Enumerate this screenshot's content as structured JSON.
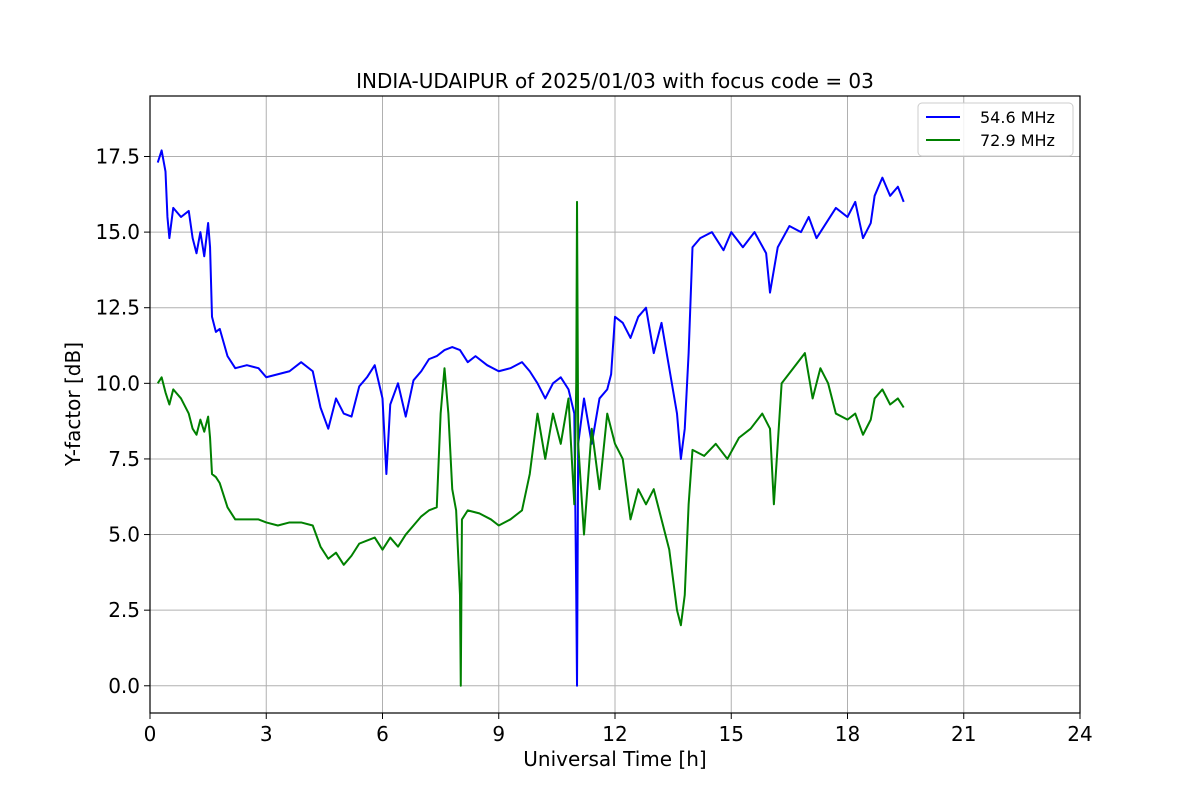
{
  "chart_data": {
    "type": "line",
    "title": "INDIA-UDAIPUR of 2025/01/03 with focus code = 03",
    "xlabel": "Universal Time [h]",
    "ylabel": "Y-factor [dB]",
    "xlim": [
      0,
      24
    ],
    "ylim": [
      -0.9,
      19.5
    ],
    "xticks": [
      0,
      3,
      6,
      9,
      12,
      15,
      18,
      21,
      24
    ],
    "xtick_labels": [
      "0",
      "3",
      "6",
      "9",
      "12",
      "15",
      "18",
      "21",
      "24"
    ],
    "yticks": [
      0.0,
      2.5,
      5.0,
      7.5,
      10.0,
      12.5,
      15.0,
      17.5
    ],
    "ytick_labels": [
      "0.0",
      "2.5",
      "5.0",
      "7.5",
      "10.0",
      "12.5",
      "15.0",
      "17.5"
    ],
    "grid": true,
    "legend_position": "top-right",
    "series": [
      {
        "name": "54.6 MHz",
        "color": "#0000ff",
        "points": [
          [
            0.2,
            17.3
          ],
          [
            0.3,
            17.7
          ],
          [
            0.4,
            17.0
          ],
          [
            0.45,
            15.5
          ],
          [
            0.5,
            14.8
          ],
          [
            0.6,
            15.8
          ],
          [
            0.8,
            15.5
          ],
          [
            1.0,
            15.7
          ],
          [
            1.1,
            14.8
          ],
          [
            1.2,
            14.3
          ],
          [
            1.3,
            15.0
          ],
          [
            1.4,
            14.2
          ],
          [
            1.5,
            15.3
          ],
          [
            1.55,
            14.5
          ],
          [
            1.6,
            12.2
          ],
          [
            1.7,
            11.7
          ],
          [
            1.8,
            11.8
          ],
          [
            2.0,
            10.9
          ],
          [
            2.2,
            10.5
          ],
          [
            2.5,
            10.6
          ],
          [
            2.8,
            10.5
          ],
          [
            3.0,
            10.2
          ],
          [
            3.3,
            10.3
          ],
          [
            3.6,
            10.4
          ],
          [
            3.9,
            10.7
          ],
          [
            4.2,
            10.4
          ],
          [
            4.4,
            9.2
          ],
          [
            4.6,
            8.5
          ],
          [
            4.8,
            9.5
          ],
          [
            5.0,
            9.0
          ],
          [
            5.2,
            8.9
          ],
          [
            5.4,
            9.9
          ],
          [
            5.6,
            10.2
          ],
          [
            5.8,
            10.6
          ],
          [
            6.0,
            9.5
          ],
          [
            6.1,
            7.0
          ],
          [
            6.2,
            9.3
          ],
          [
            6.4,
            10.0
          ],
          [
            6.6,
            8.9
          ],
          [
            6.8,
            10.1
          ],
          [
            7.0,
            10.4
          ],
          [
            7.2,
            10.8
          ],
          [
            7.4,
            10.9
          ],
          [
            7.6,
            11.1
          ],
          [
            7.8,
            11.2
          ],
          [
            8.0,
            11.1
          ],
          [
            8.2,
            10.7
          ],
          [
            8.4,
            10.9
          ],
          [
            8.7,
            10.6
          ],
          [
            9.0,
            10.4
          ],
          [
            9.3,
            10.5
          ],
          [
            9.6,
            10.7
          ],
          [
            9.8,
            10.4
          ],
          [
            10.0,
            10.0
          ],
          [
            10.2,
            9.5
          ],
          [
            10.4,
            10.0
          ],
          [
            10.6,
            10.2
          ],
          [
            10.8,
            9.8
          ],
          [
            10.95,
            9.0
          ],
          [
            11.0,
            3.0
          ],
          [
            11.02,
            0.0
          ],
          [
            11.05,
            8.0
          ],
          [
            11.2,
            9.5
          ],
          [
            11.4,
            8.0
          ],
          [
            11.6,
            9.5
          ],
          [
            11.8,
            9.8
          ],
          [
            11.9,
            10.3
          ],
          [
            12.0,
            12.2
          ],
          [
            12.2,
            12.0
          ],
          [
            12.4,
            11.5
          ],
          [
            12.6,
            12.2
          ],
          [
            12.8,
            12.5
          ],
          [
            13.0,
            11.0
          ],
          [
            13.2,
            12.0
          ],
          [
            13.4,
            10.5
          ],
          [
            13.6,
            9.0
          ],
          [
            13.7,
            7.5
          ],
          [
            13.8,
            8.5
          ],
          [
            13.9,
            11.0
          ],
          [
            14.0,
            14.5
          ],
          [
            14.2,
            14.8
          ],
          [
            14.5,
            15.0
          ],
          [
            14.8,
            14.4
          ],
          [
            15.0,
            15.0
          ],
          [
            15.3,
            14.5
          ],
          [
            15.6,
            15.0
          ],
          [
            15.9,
            14.3
          ],
          [
            16.0,
            13.0
          ],
          [
            16.2,
            14.5
          ],
          [
            16.5,
            15.2
          ],
          [
            16.8,
            15.0
          ],
          [
            17.0,
            15.5
          ],
          [
            17.2,
            14.8
          ],
          [
            17.4,
            15.2
          ],
          [
            17.7,
            15.8
          ],
          [
            18.0,
            15.5
          ],
          [
            18.2,
            16.0
          ],
          [
            18.4,
            14.8
          ],
          [
            18.6,
            15.3
          ],
          [
            18.7,
            16.2
          ],
          [
            18.9,
            16.8
          ],
          [
            19.1,
            16.2
          ],
          [
            19.3,
            16.5
          ],
          [
            19.45,
            16.0
          ]
        ]
      },
      {
        "name": "72.9 MHz",
        "color": "#008000",
        "points": [
          [
            0.2,
            10.0
          ],
          [
            0.3,
            10.2
          ],
          [
            0.4,
            9.7
          ],
          [
            0.5,
            9.3
          ],
          [
            0.6,
            9.8
          ],
          [
            0.8,
            9.5
          ],
          [
            1.0,
            9.0
          ],
          [
            1.1,
            8.5
          ],
          [
            1.2,
            8.3
          ],
          [
            1.3,
            8.8
          ],
          [
            1.4,
            8.4
          ],
          [
            1.5,
            8.9
          ],
          [
            1.55,
            8.2
          ],
          [
            1.6,
            7.0
          ],
          [
            1.7,
            6.9
          ],
          [
            1.8,
            6.7
          ],
          [
            2.0,
            5.9
          ],
          [
            2.2,
            5.5
          ],
          [
            2.5,
            5.5
          ],
          [
            2.8,
            5.5
          ],
          [
            3.0,
            5.4
          ],
          [
            3.3,
            5.3
          ],
          [
            3.6,
            5.4
          ],
          [
            3.9,
            5.4
          ],
          [
            4.2,
            5.3
          ],
          [
            4.4,
            4.6
          ],
          [
            4.6,
            4.2
          ],
          [
            4.8,
            4.4
          ],
          [
            5.0,
            4.0
          ],
          [
            5.2,
            4.3
          ],
          [
            5.4,
            4.7
          ],
          [
            5.6,
            4.8
          ],
          [
            5.8,
            4.9
          ],
          [
            6.0,
            4.5
          ],
          [
            6.2,
            4.9
          ],
          [
            6.4,
            4.6
          ],
          [
            6.6,
            5.0
          ],
          [
            6.8,
            5.3
          ],
          [
            7.0,
            5.6
          ],
          [
            7.2,
            5.8
          ],
          [
            7.4,
            5.9
          ],
          [
            7.5,
            9.0
          ],
          [
            7.6,
            10.5
          ],
          [
            7.7,
            9.0
          ],
          [
            7.8,
            6.5
          ],
          [
            7.9,
            5.8
          ],
          [
            8.0,
            3.0
          ],
          [
            8.02,
            0.0
          ],
          [
            8.05,
            5.5
          ],
          [
            8.2,
            5.8
          ],
          [
            8.5,
            5.7
          ],
          [
            8.8,
            5.5
          ],
          [
            9.0,
            5.3
          ],
          [
            9.3,
            5.5
          ],
          [
            9.6,
            5.8
          ],
          [
            9.8,
            7.0
          ],
          [
            10.0,
            9.0
          ],
          [
            10.2,
            7.5
          ],
          [
            10.4,
            9.0
          ],
          [
            10.6,
            8.0
          ],
          [
            10.8,
            9.5
          ],
          [
            10.95,
            6.0
          ],
          [
            11.0,
            10.0
          ],
          [
            11.02,
            16.0
          ],
          [
            11.05,
            8.0
          ],
          [
            11.2,
            5.0
          ],
          [
            11.4,
            8.5
          ],
          [
            11.6,
            6.5
          ],
          [
            11.8,
            9.0
          ],
          [
            12.0,
            8.0
          ],
          [
            12.2,
            7.5
          ],
          [
            12.4,
            5.5
          ],
          [
            12.6,
            6.5
          ],
          [
            12.8,
            6.0
          ],
          [
            13.0,
            6.5
          ],
          [
            13.2,
            5.5
          ],
          [
            13.4,
            4.5
          ],
          [
            13.6,
            2.5
          ],
          [
            13.7,
            2.0
          ],
          [
            13.8,
            3.0
          ],
          [
            13.9,
            6.0
          ],
          [
            14.0,
            7.8
          ],
          [
            14.3,
            7.6
          ],
          [
            14.6,
            8.0
          ],
          [
            14.9,
            7.5
          ],
          [
            15.2,
            8.2
          ],
          [
            15.5,
            8.5
          ],
          [
            15.8,
            9.0
          ],
          [
            16.0,
            8.5
          ],
          [
            16.1,
            6.0
          ],
          [
            16.3,
            10.0
          ],
          [
            16.6,
            10.5
          ],
          [
            16.9,
            11.0
          ],
          [
            17.1,
            9.5
          ],
          [
            17.3,
            10.5
          ],
          [
            17.5,
            10.0
          ],
          [
            17.7,
            9.0
          ],
          [
            18.0,
            8.8
          ],
          [
            18.2,
            9.0
          ],
          [
            18.4,
            8.3
          ],
          [
            18.6,
            8.8
          ],
          [
            18.7,
            9.5
          ],
          [
            18.9,
            9.8
          ],
          [
            19.1,
            9.3
          ],
          [
            19.3,
            9.5
          ],
          [
            19.45,
            9.2
          ]
        ]
      }
    ]
  }
}
